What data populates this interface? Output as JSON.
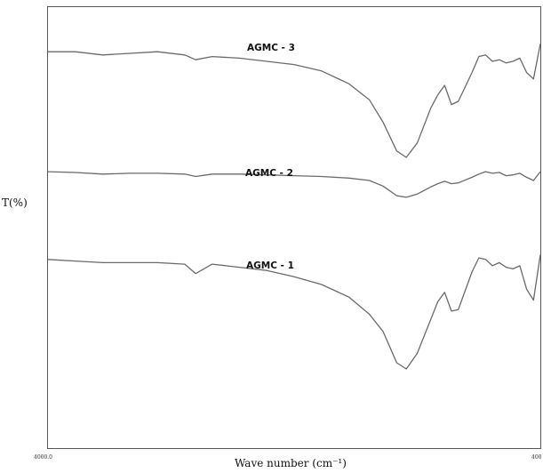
{
  "chart_data": {
    "type": "line",
    "title": "",
    "xlabel": "Wave number (cm⁻¹)",
    "ylabel": "T(%)",
    "xlim": [
      4000,
      400
    ],
    "x_reversed": true,
    "x_tick_labels": [
      "4000.0",
      "400"
    ],
    "grid": false,
    "legend": "none",
    "series": [
      {
        "name": "AGMC - 3",
        "x": [
          4000,
          3800,
          3600,
          3400,
          3200,
          3000,
          2920,
          2800,
          2600,
          2400,
          2200,
          2000,
          1800,
          1650,
          1550,
          1450,
          1380,
          1300,
          1200,
          1150,
          1100,
          1050,
          1000,
          900,
          850,
          800,
          750,
          700,
          650,
          600,
          550,
          500,
          450,
          400
        ],
        "y": [
          91,
          91,
          89,
          90,
          91,
          89,
          86,
          88,
          87,
          85,
          83,
          79,
          71,
          61,
          47,
          29,
          25,
          34,
          56,
          64,
          70,
          58,
          60,
          78,
          88,
          89,
          85,
          86,
          84,
          85,
          87,
          78,
          74,
          96
        ]
      },
      {
        "name": "AGMC - 2",
        "x": [
          4000,
          3800,
          3600,
          3400,
          3200,
          3000,
          2920,
          2800,
          2600,
          2400,
          2200,
          2000,
          1800,
          1650,
          1550,
          1450,
          1380,
          1300,
          1200,
          1150,
          1100,
          1050,
          1000,
          900,
          850,
          800,
          750,
          700,
          650,
          600,
          550,
          500,
          450,
          400
        ],
        "y": [
          91,
          90,
          88,
          89,
          89,
          88,
          85,
          88,
          88,
          87,
          86,
          85,
          83,
          80,
          73,
          61,
          59,
          63,
          72,
          76,
          79,
          76,
          77,
          84,
          88,
          91,
          89,
          90,
          86,
          87,
          89,
          84,
          80,
          91
        ]
      },
      {
        "name": "AGMC - 1",
        "x": [
          4000,
          3800,
          3600,
          3400,
          3200,
          3000,
          2920,
          2800,
          2600,
          2400,
          2200,
          2000,
          1800,
          1650,
          1550,
          1450,
          1380,
          1300,
          1200,
          1150,
          1100,
          1050,
          1000,
          900,
          850,
          800,
          750,
          700,
          650,
          600,
          550,
          500,
          450,
          400
        ],
        "y": [
          91,
          90,
          89,
          89,
          89,
          88,
          82,
          88,
          86,
          84,
          80,
          75,
          67,
          56,
          45,
          25,
          21,
          31,
          53,
          64,
          70,
          58,
          59,
          83,
          92,
          91,
          87,
          89,
          86,
          85,
          87,
          72,
          65,
          94
        ]
      }
    ]
  }
}
